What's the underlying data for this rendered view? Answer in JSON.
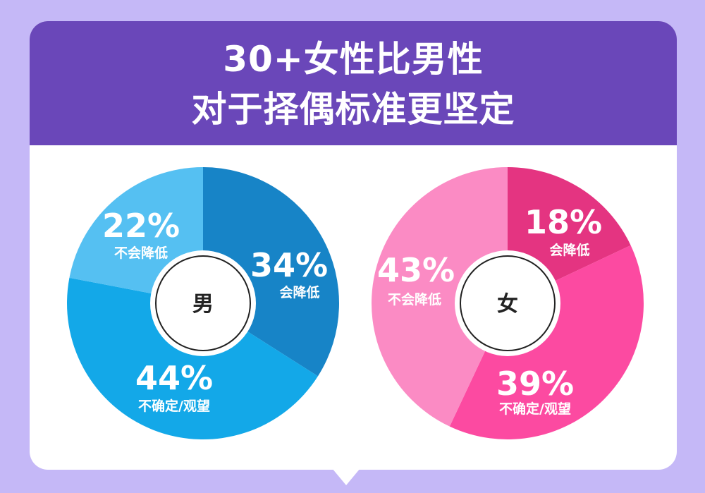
{
  "title": {
    "line1": "30+女性比男性",
    "line2": "对于择偶标准更坚定"
  },
  "chart_data": [
    {
      "type": "pie",
      "center_label": "男",
      "slices": [
        {
          "label": "会降低",
          "value": 34,
          "pct_text": "34%",
          "color": "#1784c7"
        },
        {
          "label": "不确定/观望",
          "value": 44,
          "pct_text": "44%",
          "color": "#13a8e8"
        },
        {
          "label": "不会降低",
          "value": 22,
          "pct_text": "22%",
          "color": "#55c0f2"
        }
      ]
    },
    {
      "type": "pie",
      "center_label": "女",
      "slices": [
        {
          "label": "会降低",
          "value": 18,
          "pct_text": "18%",
          "color": "#e43481"
        },
        {
          "label": "不确定/观望",
          "value": 39,
          "pct_text": "39%",
          "color": "#fc4aa1"
        },
        {
          "label": "不会降低",
          "value": 43,
          "pct_text": "43%",
          "color": "#fb8bc4"
        }
      ]
    }
  ]
}
